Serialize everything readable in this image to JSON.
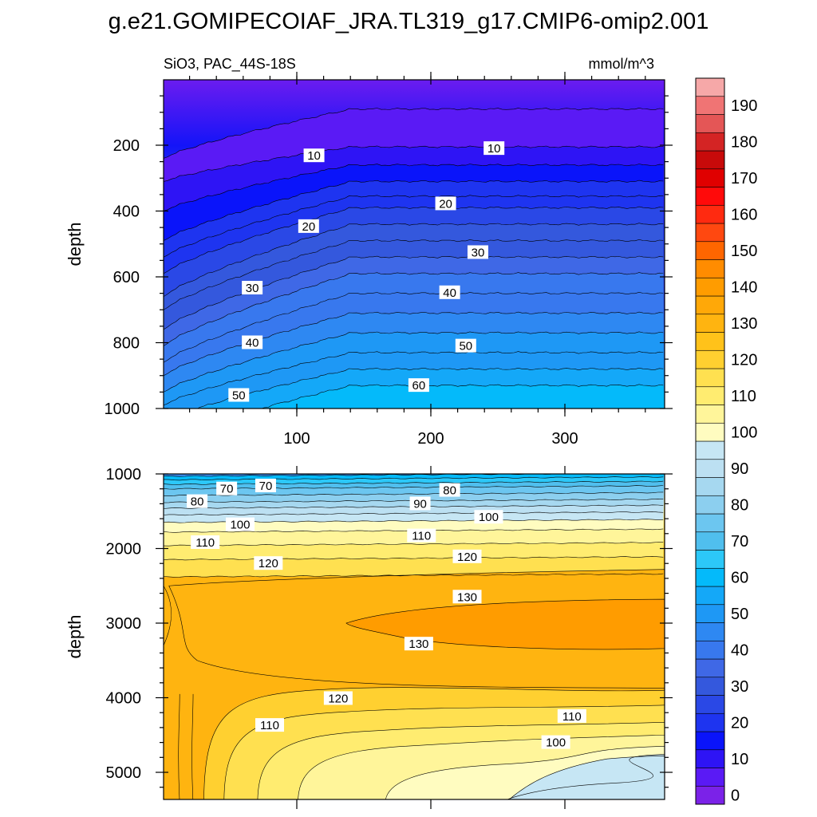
{
  "chart_data": {
    "type": "heatmap",
    "title": "g.e21.GOMIPECOIAF_JRA.TL319_g17.CMIP6-omip2.001",
    "left_subtitle": "SiO3, PAC_44S-18S",
    "right_subtitle": "mmol/m^3",
    "colorbar": {
      "levels": [
        0,
        5,
        10,
        15,
        20,
        25,
        30,
        35,
        40,
        45,
        50,
        55,
        60,
        65,
        70,
        75,
        80,
        85,
        90,
        95,
        100,
        105,
        110,
        115,
        120,
        125,
        130,
        135,
        140,
        145,
        150,
        155,
        160,
        165,
        170,
        175,
        180,
        185,
        190,
        195
      ],
      "tick_labels": [
        "0",
        "10",
        "20",
        "30",
        "40",
        "50",
        "60",
        "70",
        "80",
        "90",
        "100",
        "110",
        "120",
        "130",
        "140",
        "150",
        "160",
        "170",
        "180",
        "190"
      ],
      "colors": [
        "#7B22E8",
        "#5A1AF5",
        "#2E14F5",
        "#0A14FA",
        "#1E34F0",
        "#2A48E6",
        "#3458DD",
        "#3F68E6",
        "#3878EE",
        "#2E88F2",
        "#1E98F5",
        "#14A8F8",
        "#04BAFA",
        "#2CC8F8",
        "#50BFEE",
        "#6CC6F0",
        "#8CCFEF",
        "#A6D8F0",
        "#BCE0F2",
        "#C6E6F4",
        "#FFFCC0",
        "#FFF59A",
        "#FFEC70",
        "#FFE050",
        "#FFD030",
        "#FFC21A",
        "#FFB410",
        "#FFA808",
        "#FF9C00",
        "#FF8C00",
        "#FF6600",
        "#FF4810",
        "#FF2A10",
        "#FF0A0A",
        "#E00000",
        "#C80A0A",
        "#D42424",
        "#E45656",
        "#F07474",
        "#F6A8A8"
      ]
    },
    "panels": [
      {
        "id": "upper",
        "ylabel": "depth",
        "x_ticks": [
          100,
          200,
          300
        ],
        "x_tick_labels": [
          "100",
          "200",
          "300"
        ],
        "y_ticks": [
          200,
          400,
          600,
          800,
          1000
        ],
        "y_tick_labels": [
          "200",
          "400",
          "600",
          "800",
          "1000"
        ],
        "contour_labels": [
          {
            "text": "10",
            "x": 112,
            "y": 232
          },
          {
            "text": "10",
            "x": 246,
            "y": 210
          },
          {
            "text": "20",
            "x": 108,
            "y": 447
          },
          {
            "text": "20",
            "x": 210,
            "y": 378
          },
          {
            "text": "30",
            "x": 66,
            "y": 634
          },
          {
            "text": "30",
            "x": 234,
            "y": 526
          },
          {
            "text": "40",
            "x": 66,
            "y": 800
          },
          {
            "text": "40",
            "x": 213,
            "y": 648
          },
          {
            "text": "50",
            "x": 56,
            "y": 960
          },
          {
            "text": "50",
            "x": 225,
            "y": 810
          },
          {
            "text": "60",
            "x": 190,
            "y": 930
          }
        ]
      },
      {
        "id": "lower",
        "ylabel": "depth",
        "y_ticks": [
          1000,
          2000,
          3000,
          4000,
          5000
        ],
        "y_tick_labels": [
          "1000",
          "2000",
          "3000",
          "4000",
          "5000"
        ],
        "contour_labels": [
          {
            "text": "70",
            "x": 47,
            "y": 1200
          },
          {
            "text": "70",
            "x": 76,
            "y": 1160
          },
          {
            "text": "80",
            "x": 25,
            "y": 1370
          },
          {
            "text": "80",
            "x": 213,
            "y": 1220
          },
          {
            "text": "90",
            "x": 191,
            "y": 1400
          },
          {
            "text": "100",
            "x": 57,
            "y": 1680
          },
          {
            "text": "100",
            "x": 242,
            "y": 1580
          },
          {
            "text": "110",
            "x": 31,
            "y": 1920
          },
          {
            "text": "110",
            "x": 192,
            "y": 1830
          },
          {
            "text": "110",
            "x": 79,
            "y": 4370
          },
          {
            "text": "110",
            "x": 304,
            "y": 4250
          },
          {
            "text": "120",
            "x": 78,
            "y": 2200
          },
          {
            "text": "120",
            "x": 226,
            "y": 2110
          },
          {
            "text": "120",
            "x": 130,
            "y": 4010
          },
          {
            "text": "130",
            "x": 226,
            "y": 2650
          },
          {
            "text": "130",
            "x": 190,
            "y": 3280
          },
          {
            "text": "100",
            "x": 292,
            "y": 4600
          }
        ]
      }
    ]
  }
}
